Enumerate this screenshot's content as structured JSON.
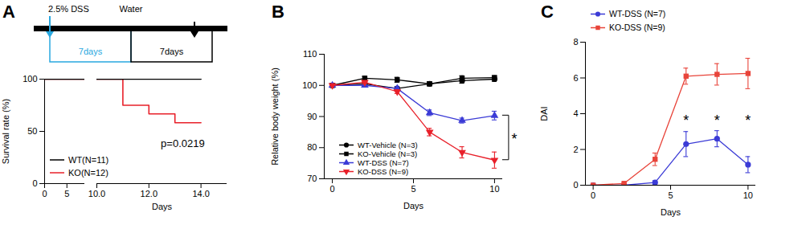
{
  "chart_data": [
    {
      "type": "line",
      "title": "A",
      "schematic": {
        "start_label": "2.5% DSS",
        "switch_label": "Water",
        "periods": [
          {
            "label": "7days",
            "color": "#29a8e0"
          },
          {
            "label": "7days",
            "color": "#000000"
          }
        ]
      },
      "x_label": "Days",
      "y_label": "Survival rate (%)",
      "xlim": [
        0,
        15
      ],
      "xticks": [
        0,
        5,
        10,
        12,
        14
      ],
      "xbreak": [
        9,
        10
      ],
      "ylim": [
        0,
        100
      ],
      "yticks": [
        0,
        50,
        100
      ],
      "line_style": "step",
      "legend": "lower left",
      "series": [
        {
          "name": "WT(N=11)",
          "color": "#000000",
          "x": [
            0,
            14
          ],
          "values": [
            100,
            100
          ]
        },
        {
          "name": "KO(N=12)",
          "color": "#e8202a",
          "x": [
            0,
            11,
            12,
            13,
            14
          ],
          "values": [
            100,
            75,
            66.7,
            58.3,
            58.3
          ]
        }
      ],
      "annotations": [
        {
          "text": "p=0.0219",
          "x": 13.3,
          "y": 38
        }
      ]
    },
    {
      "type": "line",
      "title": "B",
      "x_label": "Days",
      "y_label": "Relative body weight (%)",
      "x": [
        0,
        2,
        4,
        6,
        8,
        10
      ],
      "xlim": [
        -0.5,
        10.5
      ],
      "xticks": [
        0,
        5,
        10
      ],
      "ylim": [
        70,
        110
      ],
      "yticks": [
        70,
        80,
        90,
        100,
        110
      ],
      "legend": "lower left",
      "series": [
        {
          "name": "WT-Vehicle (N=3)",
          "color": "#000000",
          "marker": "circle",
          "values": [
            100,
            100.5,
            99,
            100.5,
            101.5,
            102
          ],
          "errors": [
            0,
            0.5,
            0.6,
            0.7,
            0.8,
            0.7
          ]
        },
        {
          "name": "KO-Vehicle (N=3)",
          "color": "#000000",
          "marker": "square",
          "values": [
            100,
            102.3,
            101.8,
            100.5,
            102.3,
            102.5
          ],
          "errors": [
            0,
            0.6,
            0.8,
            0.5,
            0.8,
            0.6
          ]
        },
        {
          "name": "WT-DSS (N=7)",
          "color": "#3b3bd6",
          "marker": "triangle",
          "values": [
            100,
            100,
            99,
            91.2,
            88.7,
            90.3
          ],
          "errors": [
            0,
            0.4,
            0.6,
            0.9,
            0.8,
            1.4
          ]
        },
        {
          "name": "KO-DSS (N=9)",
          "color": "#e8202a",
          "marker": "triangle-down",
          "values": [
            100,
            101,
            98,
            85,
            78.5,
            76
          ],
          "errors": [
            0,
            0.5,
            0.6,
            1.2,
            1.8,
            2.6
          ]
        }
      ],
      "annotations": [
        {
          "text": "*",
          "x": 10,
          "between": [
            "WT-DSS (N=7)",
            "KO-DSS (N=9)"
          ]
        }
      ]
    },
    {
      "type": "line",
      "title": "C",
      "x_label": "Days",
      "y_label": "DAI",
      "x": [
        0,
        2,
        4,
        6,
        8,
        10
      ],
      "xlim": [
        -0.5,
        10.5
      ],
      "xticks": [
        0,
        5,
        10
      ],
      "ylim": [
        0,
        8
      ],
      "yticks": [
        0,
        2,
        4,
        6,
        8
      ],
      "legend": "upper left",
      "series": [
        {
          "name": "WT-DSS (N=7)",
          "color": "#3b3bd6",
          "marker": "circle",
          "values": [
            0,
            0,
            0.15,
            2.3,
            2.6,
            1.15
          ],
          "errors": [
            0,
            0,
            0.1,
            0.7,
            0.45,
            0.45
          ]
        },
        {
          "name": "KO-DSS (N=9)",
          "color": "#e8443a",
          "marker": "square",
          "values": [
            0,
            0.1,
            1.45,
            6.1,
            6.2,
            6.25
          ],
          "errors": [
            0,
            0.05,
            0.35,
            0.45,
            0.6,
            0.85
          ]
        }
      ],
      "annotations": [
        {
          "text": "*",
          "x": 6,
          "y": 3.6
        },
        {
          "text": "*",
          "x": 8,
          "y": 3.6
        },
        {
          "text": "*",
          "x": 10,
          "y": 3.6
        }
      ]
    }
  ]
}
